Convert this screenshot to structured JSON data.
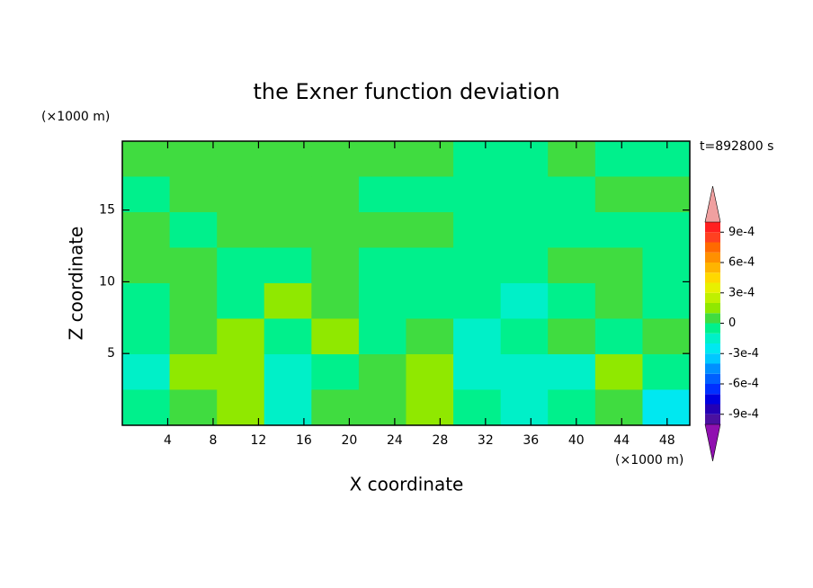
{
  "chart_data": {
    "type": "contour",
    "title": "the Exner function deviation",
    "x_label": "X coordinate",
    "y_label": "Z coordinate",
    "x_unit": "(×1000 m)",
    "y_unit": "(×1000 m)",
    "annotation": "t=892800 s",
    "xlim": [
      0,
      50
    ],
    "ylim": [
      0,
      19.8
    ],
    "xticks": [
      4,
      8,
      12,
      16,
      20,
      24,
      28,
      32,
      36,
      40,
      44,
      48
    ],
    "yticks": [
      5,
      10,
      15
    ],
    "x": [
      2.08,
      6.25,
      10.42,
      14.58,
      18.75,
      22.92,
      27.08,
      31.25,
      35.42,
      39.58,
      43.75,
      47.92
    ],
    "y": [
      18.56,
      16.09,
      13.61,
      11.14,
      8.66,
      6.19,
      3.71,
      1.24
    ],
    "values": [
      [
        5e-05,
        5e-05,
        5e-05,
        5e-05,
        5e-05,
        5e-05,
        5e-05,
        -5e-05,
        -5e-05,
        5e-05,
        -5e-05,
        -5e-05
      ],
      [
        -5e-05,
        5e-05,
        5e-05,
        5e-05,
        5e-05,
        -5e-05,
        -5e-05,
        -5e-05,
        -5e-05,
        -5e-05,
        5e-05,
        5e-05
      ],
      [
        5e-05,
        -5e-05,
        5e-05,
        5e-05,
        5e-05,
        5e-05,
        5e-05,
        -5e-05,
        -5e-05,
        -5e-05,
        -5e-05,
        -5e-05
      ],
      [
        5e-05,
        5e-05,
        -5e-05,
        -5e-05,
        5e-05,
        -5e-05,
        -5e-05,
        -5e-05,
        -5e-05,
        5e-05,
        5e-05,
        -5e-05
      ],
      [
        -5e-05,
        5e-05,
        -5e-05,
        0.00015,
        5e-05,
        -5e-05,
        -5e-05,
        -5e-05,
        -0.00015,
        -5e-05,
        5e-05,
        -5e-05
      ],
      [
        -5e-05,
        5e-05,
        0.00015,
        -5e-05,
        0.00015,
        -5e-05,
        5e-05,
        -0.00015,
        -5e-05,
        5e-05,
        -5e-05,
        5e-05
      ],
      [
        -0.00015,
        0.00015,
        0.00015,
        -0.00015,
        -5e-05,
        5e-05,
        0.00015,
        -0.00015,
        -0.00015,
        -0.00015,
        0.00015,
        -5e-05
      ],
      [
        -5e-05,
        5e-05,
        0.00015,
        -0.00015,
        5e-05,
        5e-05,
        0.00015,
        -5e-05,
        -0.00015,
        -5e-05,
        5e-05,
        -0.00025
      ]
    ],
    "levels": [
      -0.001,
      -0.0009,
      -0.0008,
      -0.0007,
      -0.0006,
      -0.0005,
      -0.0004,
      -0.0003,
      -0.0002,
      -0.0001,
      0,
      0.0001,
      0.0002,
      0.0003,
      0.0004,
      0.0005,
      0.0006,
      0.0007,
      0.0008,
      0.0009,
      0.001
    ],
    "colors": [
      "#4a10a0",
      "#2400b4",
      "#0000e0",
      "#0030ff",
      "#0060ff",
      "#0090ff",
      "#00c8ff",
      "#00e8f0",
      "#00f0c8",
      "#00f08c",
      "#40dc40",
      "#90e800",
      "#c0f000",
      "#e8f000",
      "#ffd800",
      "#ffb400",
      "#ff9000",
      "#ff6a00",
      "#ff4020",
      "#ff2020"
    ],
    "under_color": "#9010b0",
    "over_color": "#f0a0a0",
    "cticks": [
      {
        "value": 0.0009,
        "label": "9e-4"
      },
      {
        "value": 0.0006,
        "label": "6e-4"
      },
      {
        "value": 0.0003,
        "label": "3e-4"
      },
      0,
      {
        "value": -0.0003,
        "label": "-3e-4"
      },
      {
        "value": -0.0006,
        "label": "-6e-4"
      },
      {
        "value": -0.0009,
        "label": "-9e-4"
      }
    ]
  }
}
